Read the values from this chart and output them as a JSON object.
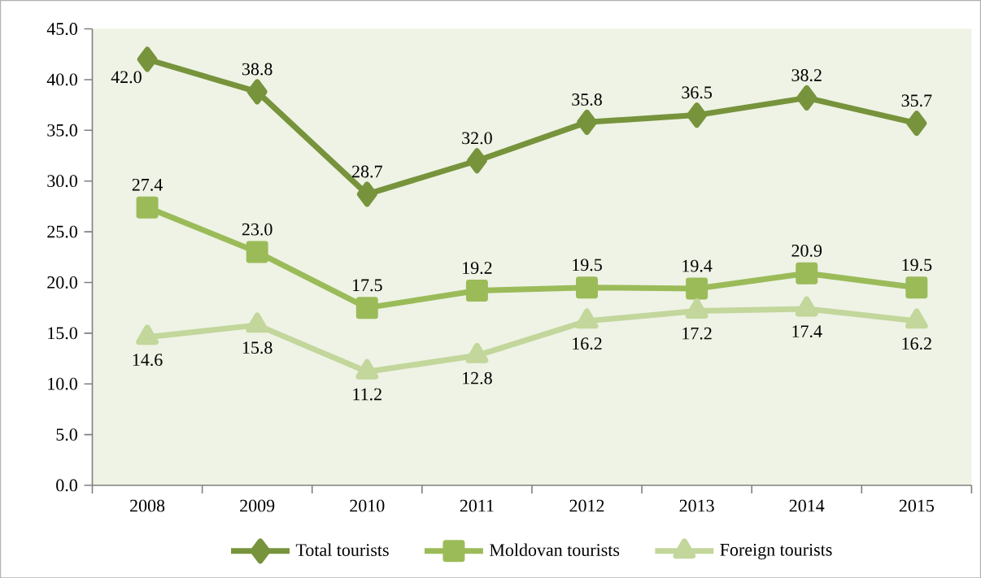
{
  "chart_data": {
    "type": "line",
    "categories": [
      "2008",
      "2009",
      "2010",
      "2011",
      "2012",
      "2013",
      "2014",
      "2015"
    ],
    "series": [
      {
        "name": "Total tourists",
        "color": "#77933c",
        "marker": "diamond",
        "values": [
          42.0,
          38.8,
          28.7,
          32.0,
          35.8,
          36.5,
          38.2,
          35.7
        ],
        "value_labels": [
          "42.0",
          "38.8",
          "28.7",
          "32.0",
          "35.8",
          "36.5",
          "38.2",
          "35.7"
        ]
      },
      {
        "name": "Moldovan tourists",
        "color": "#9bbb59",
        "marker": "square",
        "values": [
          27.4,
          23.0,
          17.5,
          19.2,
          19.5,
          19.4,
          20.9,
          19.5
        ],
        "value_labels": [
          "27.4",
          "23.0",
          "17.5",
          "19.2",
          "19.5",
          "19.4",
          "20.9",
          "19.5"
        ]
      },
      {
        "name": "Foreign tourists",
        "color": "#c3d69b",
        "marker": "triangle",
        "values": [
          14.6,
          15.8,
          11.2,
          12.8,
          16.2,
          17.2,
          17.4,
          16.2
        ],
        "value_labels": [
          "14.6",
          "15.8",
          "11.2",
          "12.8",
          "16.2",
          "17.2",
          "17.4",
          "16.2"
        ]
      }
    ],
    "ylim": [
      0,
      45
    ],
    "yticks": [
      {
        "value": 0,
        "label": "0.0"
      },
      {
        "value": 5,
        "label": "5.0"
      },
      {
        "value": 10,
        "label": "10.0"
      },
      {
        "value": 15,
        "label": "15.0"
      },
      {
        "value": 20,
        "label": "20.0"
      },
      {
        "value": 25,
        "label": "25.0"
      },
      {
        "value": 30,
        "label": "30.0"
      },
      {
        "value": 35,
        "label": "35.0"
      },
      {
        "value": 40,
        "label": "40.0"
      },
      {
        "value": 45,
        "label": "45.0"
      }
    ],
    "grid": false,
    "legend": "bottom",
    "line_style": "solid"
  }
}
